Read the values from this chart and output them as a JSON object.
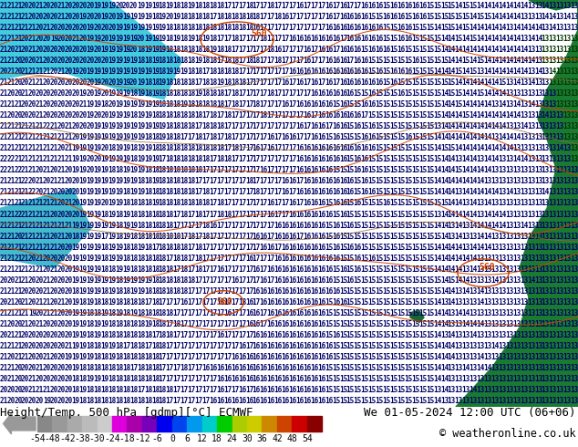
{
  "title_left": "Height/Temp. 500 hPa [gdmp][°C] ECMWF",
  "title_right": "We 01-05-2024 12:00 UTC (06+06)",
  "copyright": "© weatheronline.co.uk",
  "cb_labels": [
    "-54",
    "-48",
    "-42",
    "-38",
    "-30",
    "-24",
    "-18",
    "-12",
    "-6",
    "0",
    "6",
    "12",
    "18",
    "24",
    "30",
    "36",
    "42",
    "48",
    "54"
  ],
  "cb_colors": [
    "#888888",
    "#999999",
    "#aaaaaa",
    "#bbbbbb",
    "#cccccc",
    "#dd00dd",
    "#aa00aa",
    "#7700bb",
    "#0000ee",
    "#0044ee",
    "#0099ee",
    "#00cccc",
    "#00cc00",
    "#aacc00",
    "#cccc00",
    "#cc8800",
    "#cc4400",
    "#cc0000",
    "#880000"
  ],
  "bg_color_ocean": "#55ddee",
  "bg_color_sea": "#33bbdd",
  "land_color_green": "#1a7a30",
  "land_color_small": "#1a6630",
  "number_color_ocean": "#000066",
  "number_color_land": "#003300",
  "contour_color": "#cc4400",
  "slp_color": "#884400",
  "font_family": "monospace",
  "number_fontsize": 5.5,
  "title_fontsize": 9.0,
  "colorbar_label_fontsize": 7.0,
  "cols": 80,
  "rows": 37
}
